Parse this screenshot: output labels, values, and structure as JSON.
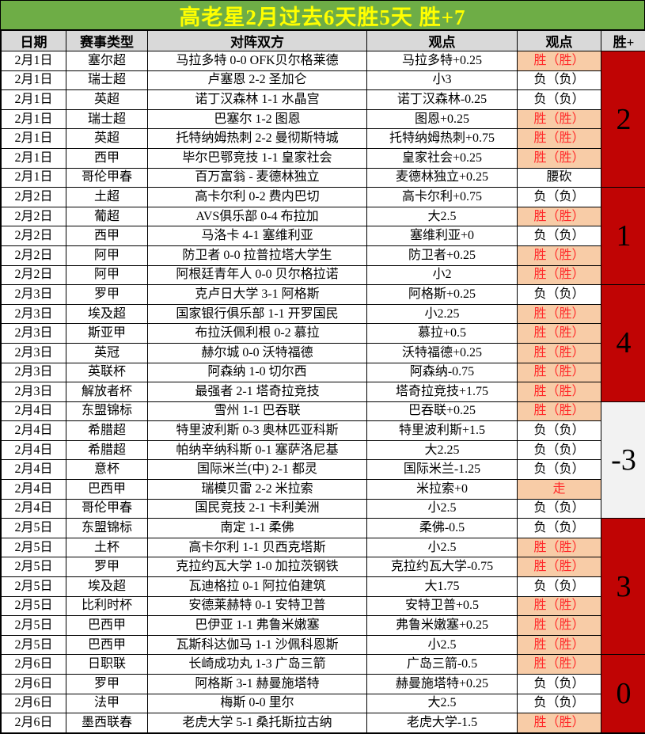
{
  "title": "高老星2月过去6天胜5天 胜+7",
  "columns": [
    "日期",
    "赛事类型",
    "对阵双方",
    "观点",
    "观点",
    "胜+"
  ],
  "colors": {
    "title_bg": "#6ead46",
    "title_text": "#ffff00",
    "header_bg": "#d9d9d9",
    "win_bg": "#f8cca7",
    "win_text": "#ff2a2a",
    "net_red_bg": "#c00404",
    "net_gray_bg": "#f2f2f2"
  },
  "rows": [
    {
      "date": "2月1日",
      "league": "塞尔超",
      "match": "马拉多特 0-0 OFK贝尔格莱德",
      "pick": "马拉多特+0.25",
      "result": "胜（胜）",
      "outcome": "win"
    },
    {
      "date": "2月1日",
      "league": "瑞士超",
      "match": "卢塞恩 2-2 圣加仑",
      "pick": "小3",
      "result": "负（负）",
      "outcome": "loss"
    },
    {
      "date": "2月1日",
      "league": "英超",
      "match": "诺丁汉森林 1-1 水晶宫",
      "pick": "诺丁汉森林-0.25",
      "result": "负（负）",
      "outcome": "loss"
    },
    {
      "date": "2月1日",
      "league": "瑞士超",
      "match": "巴塞尔 1-2 图恩",
      "pick": "图恩+0.25",
      "result": "胜（胜）",
      "outcome": "win"
    },
    {
      "date": "2月1日",
      "league": "英超",
      "match": "托特纳姆热刺 2-2 曼彻斯特城",
      "pick": "托特纳姆热刺+0.75",
      "result": "胜（胜）",
      "outcome": "win"
    },
    {
      "date": "2月1日",
      "league": "西甲",
      "match": "毕尔巴鄂竞技 1-1 皇家社会",
      "pick": "皇家社会+0.25",
      "result": "胜（胜）",
      "outcome": "win"
    },
    {
      "date": "2月1日",
      "league": "哥伦甲春",
      "match": "百万富翁 - 麦德林独立",
      "pick": "麦德林独立+0.25",
      "result": "腰砍",
      "outcome": "cut"
    },
    {
      "date": "2月2日",
      "league": "土超",
      "match": "高卡尔利 0-2 费内巴切",
      "pick": "高卡尔利+0.75",
      "result": "负（负）",
      "outcome": "loss"
    },
    {
      "date": "2月2日",
      "league": "葡超",
      "match": "AVS俱乐部 0-4 布拉加",
      "pick": "大2.5",
      "result": "胜（胜）",
      "outcome": "win"
    },
    {
      "date": "2月2日",
      "league": "西甲",
      "match": "马洛卡 4-1 塞维利亚",
      "pick": "塞维利亚+0",
      "result": "负（负）",
      "outcome": "loss"
    },
    {
      "date": "2月2日",
      "league": "阿甲",
      "match": "防卫者 0-0 拉普拉塔大学生",
      "pick": "防卫者+0.25",
      "result": "胜（胜）",
      "outcome": "win"
    },
    {
      "date": "2月2日",
      "league": "阿甲",
      "match": "阿根廷青年人 0-0 贝尔格拉诺",
      "pick": "小2",
      "result": "胜（胜）",
      "outcome": "win"
    },
    {
      "date": "2月3日",
      "league": "罗甲",
      "match": "克卢日大学 3-1 阿格斯",
      "pick": "阿格斯+0.25",
      "result": "负（负）",
      "outcome": "loss"
    },
    {
      "date": "2月3日",
      "league": "埃及超",
      "match": "国家银行俱乐部 1-1 开罗国民",
      "pick": "小2.25",
      "result": "胜（胜）",
      "outcome": "win"
    },
    {
      "date": "2月3日",
      "league": "斯亚甲",
      "match": "布拉沃佩利根 0-2 慕拉",
      "pick": "慕拉+0.5",
      "result": "胜（胜）",
      "outcome": "win"
    },
    {
      "date": "2月3日",
      "league": "英冠",
      "match": "赫尔城 0-0 沃特福德",
      "pick": "沃特福德+0.25",
      "result": "胜（胜）",
      "outcome": "win"
    },
    {
      "date": "2月3日",
      "league": "英联杯",
      "match": "阿森纳 1-0 切尔西",
      "pick": "阿森纳-0.75",
      "result": "胜（胜）",
      "outcome": "win"
    },
    {
      "date": "2月3日",
      "league": "解放者杯",
      "match": "最强者 2-1 塔奇拉竞技",
      "pick": "塔奇拉竞技+1.75",
      "result": "胜（胜）",
      "outcome": "win"
    },
    {
      "date": "2月4日",
      "league": "东盟锦标",
      "match": "雪州 1-1 巴吞联",
      "pick": "巴吞联+0.25",
      "result": "胜（胜）",
      "outcome": "win"
    },
    {
      "date": "2月4日",
      "league": "希腊超",
      "match": "特里波利斯 0-3 奥林匹亚科斯",
      "pick": "特里波利斯+1.5",
      "result": "负（负）",
      "outcome": "loss"
    },
    {
      "date": "2月4日",
      "league": "希腊超",
      "match": "帕纳辛纳科斯 0-1 塞萨洛尼基",
      "pick": "大2.25",
      "result": "负（负）",
      "outcome": "loss"
    },
    {
      "date": "2月4日",
      "league": "意杯",
      "match": "国际米兰(中) 2-1 都灵",
      "pick": "国际米兰-1.25",
      "result": "负（负）",
      "outcome": "loss"
    },
    {
      "date": "2月4日",
      "league": "巴西甲",
      "match": "瑞模贝雷 2-2 米拉索",
      "pick": "米拉索+0",
      "result": "走",
      "outcome": "push"
    },
    {
      "date": "2月4日",
      "league": "哥伦甲春",
      "match": "国民竞技 2-1 卡利美洲",
      "pick": "小2.5",
      "result": "负（负）",
      "outcome": "loss"
    },
    {
      "date": "2月5日",
      "league": "东盟锦标",
      "match": "南定 1-1 柔佛",
      "pick": "柔佛-0.5",
      "result": "负（负）",
      "outcome": "loss"
    },
    {
      "date": "2月5日",
      "league": "土杯",
      "match": "高卡尔利 1-1 贝西克塔斯",
      "pick": "小2.5",
      "result": "胜（胜）",
      "outcome": "win"
    },
    {
      "date": "2月5日",
      "league": "罗甲",
      "match": "克拉约瓦大学 1-0 加拉茨钢铁",
      "pick": "克拉约瓦大学-0.75",
      "result": "胜（胜）",
      "outcome": "win"
    },
    {
      "date": "2月5日",
      "league": "埃及超",
      "match": "瓦迪格拉 0-1 阿拉伯建筑",
      "pick": "大1.75",
      "result": "负（负）",
      "outcome": "loss"
    },
    {
      "date": "2月5日",
      "league": "比利时杯",
      "match": "安德莱赫特 0-1 安特卫普",
      "pick": "安特卫普+0.5",
      "result": "胜（胜）",
      "outcome": "win"
    },
    {
      "date": "2月5日",
      "league": "巴西甲",
      "match": "巴伊亚 1-1 弗鲁米嫩塞",
      "pick": "弗鲁米嫩塞+0.25",
      "result": "胜（胜）",
      "outcome": "win"
    },
    {
      "date": "2月5日",
      "league": "巴西甲",
      "match": "瓦斯科达伽马 1-1 沙佩科恩斯",
      "pick": "小2.5",
      "result": "胜（胜）",
      "outcome": "win"
    },
    {
      "date": "2月6日",
      "league": "日职联",
      "match": "长崎成功丸 1-3 广岛三箭",
      "pick": "广岛三箭-0.5",
      "result": "胜（胜）",
      "outcome": "win"
    },
    {
      "date": "2月6日",
      "league": "罗甲",
      "match": "阿格斯 3-1 赫曼施塔特",
      "pick": "赫曼施塔特+0.25",
      "result": "负（负）",
      "outcome": "loss"
    },
    {
      "date": "2月6日",
      "league": "法甲",
      "match": "梅斯 0-0 里尔",
      "pick": "大2.5",
      "result": "负（负）",
      "outcome": "loss"
    },
    {
      "date": "2月6日",
      "league": "墨西联春",
      "match": "老虎大学 5-1 桑托斯拉古纳",
      "pick": "老虎大学-1.5",
      "result": "胜（胜）",
      "outcome": "win"
    }
  ],
  "daily_net_groups": [
    {
      "date": "2月1日",
      "span": 7,
      "label": "2",
      "tone": "red"
    },
    {
      "date": "2月2日",
      "span": 5,
      "label": "1",
      "tone": "red"
    },
    {
      "date": "2月3日",
      "span": 6,
      "label": "4",
      "tone": "red"
    },
    {
      "date": "2月4日",
      "span": 6,
      "label": "-3",
      "tone": "gray"
    },
    {
      "date": "2月5日",
      "span": 7,
      "label": "3",
      "tone": "red"
    },
    {
      "date": "2月6日",
      "span": 4,
      "label": "0",
      "tone": "red"
    }
  ]
}
